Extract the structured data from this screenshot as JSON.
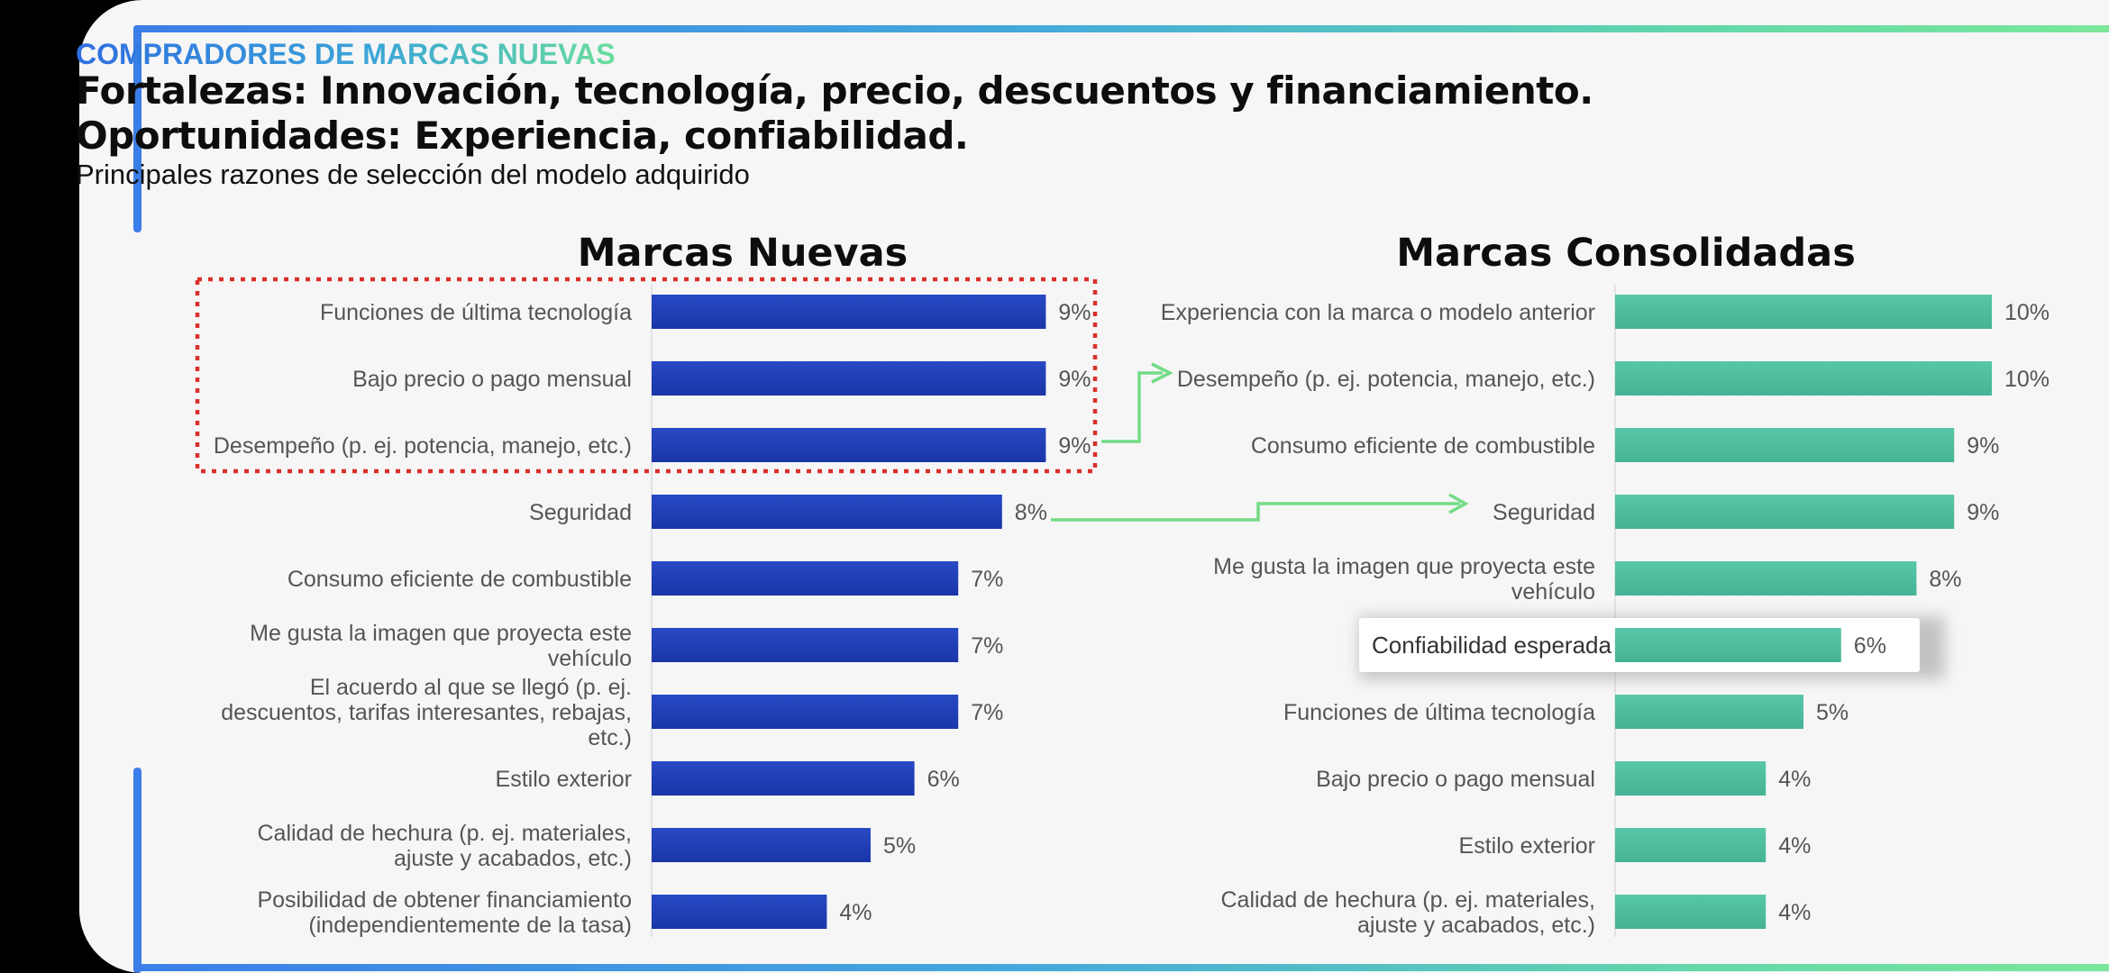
{
  "header": {
    "section_tag": "COMPRADORES DE MARCAS NUEVAS",
    "headline_1": "Fortalezas: Innovación, tecnología, precio, descuentos y financiamiento.",
    "headline_2": "Oportunidades: Experiencia, confiabilidad.",
    "subtitle": "Principales razones de selección del modelo adquirido"
  },
  "colors": {
    "new_brands_bar": "#1f3fb8",
    "consolidated_brands_bar": "#4fbf9f",
    "highlight_box": "#d9302c",
    "arrow": "#74dc86",
    "frame_accent": "#3b7ee8"
  },
  "chart_data": [
    {
      "type": "bar",
      "orientation": "horizontal",
      "title": "Marcas Nuevas",
      "categories": [
        "Funciones de última tecnología",
        "Bajo precio o pago mensual",
        "Desempeño (p. ej. potencia, manejo, etc.)",
        "Seguridad",
        "Consumo eficiente de combustible",
        "Me gusta la imagen que proyecta este vehículo",
        "El acuerdo al que se llegó (p. ej. descuentos, tarifas interesantes, rebajas, etc.)",
        "Estilo exterior",
        "Calidad de hechura (p. ej. materiales, ajuste y acabados, etc.)",
        "Posibilidad de obtener financiamiento (independientemente de la tasa)"
      ],
      "values": [
        9,
        9,
        9,
        8,
        7,
        7,
        7,
        6,
        5,
        4
      ],
      "value_labels": [
        "9%",
        "9%",
        "9%",
        "8%",
        "7%",
        "7%",
        "7%",
        "6%",
        "5%",
        "4%"
      ],
      "unit": "%",
      "highlighted_categories": [
        "Funciones de última tecnología",
        "Bajo precio o pago mensual",
        "Desempeño (p. ej. potencia, manejo, etc.)"
      ]
    },
    {
      "type": "bar",
      "orientation": "horizontal",
      "title": "Marcas Consolidadas",
      "categories": [
        "Experiencia con la marca o modelo anterior",
        "Desempeño (p. ej. potencia, manejo, etc.)",
        "Consumo eficiente de combustible",
        "Seguridad",
        "Me gusta la imagen que proyecta este vehículo",
        "Confiabilidad esperada",
        "Funciones de última tecnología",
        "Bajo precio o pago mensual",
        "Estilo exterior",
        "Calidad de hechura (p. ej. materiales, ajuste y acabados, etc.)"
      ],
      "values": [
        10,
        10,
        9,
        9,
        8,
        6,
        5,
        4,
        4,
        4
      ],
      "value_labels": [
        "10%",
        "10%",
        "9%",
        "9%",
        "8%",
        "6%",
        "5%",
        "4%",
        "4%",
        "4%"
      ],
      "unit": "%",
      "highlighted_categories": [
        "Confiabilidad esperada"
      ]
    }
  ]
}
